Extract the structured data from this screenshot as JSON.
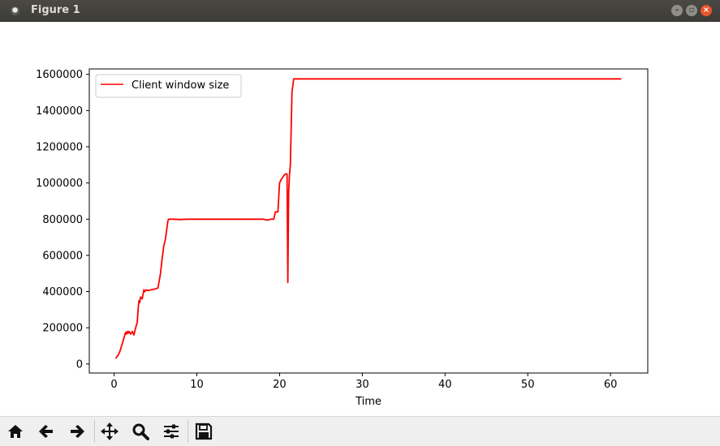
{
  "window": {
    "title": "Figure 1"
  },
  "toolbar": {
    "buttons": [
      {
        "name": "home-icon"
      },
      {
        "name": "back-arrow-icon"
      },
      {
        "name": "forward-arrow-icon"
      },
      {
        "name": "pan-icon"
      },
      {
        "name": "zoom-icon"
      },
      {
        "name": "configure-subplots-icon"
      },
      {
        "name": "save-icon"
      }
    ]
  },
  "chart_data": {
    "type": "line",
    "title": "",
    "xlabel": "Time",
    "ylabel": "",
    "xlim": [
      -3,
      64.5
    ],
    "ylim": [
      -50000,
      1630000
    ],
    "xticks": [
      "0",
      "10",
      "20",
      "30",
      "40",
      "50",
      "60"
    ],
    "yticks": [
      "0",
      "200000",
      "400000",
      "600000",
      "800000",
      "1000000",
      "1200000",
      "1400000",
      "1600000"
    ],
    "grid": false,
    "legend": {
      "location": "upper left",
      "entries": [
        "Client window size"
      ]
    },
    "series": [
      {
        "name": "Client window size",
        "color": "#ff0000",
        "x": [
          0.2,
          0.5,
          0.7,
          0.9,
          1.1,
          1.3,
          1.4,
          1.5,
          1.6,
          1.7,
          1.8,
          2.0,
          2.2,
          2.4,
          2.6,
          2.8,
          2.9,
          3.0,
          3.1,
          3.2,
          3.4,
          3.6,
          3.7,
          3.9,
          4.1,
          4.5,
          5.0,
          5.3,
          5.5,
          5.6,
          5.8,
          6.0,
          6.2,
          6.5,
          6.6,
          7.0,
          8.0,
          9.0,
          10.0,
          11.0,
          12.0,
          13.0,
          14.0,
          15.0,
          16.0,
          17.0,
          18.0,
          18.5,
          19.0,
          19.3,
          19.5,
          19.8,
          20.0,
          20.2,
          20.5,
          20.7,
          20.9,
          21.0,
          21.1,
          21.2,
          21.3,
          21.4,
          21.5,
          21.7,
          22.0,
          30.0,
          40.0,
          50.0,
          61.3
        ],
        "y": [
          30000,
          50000,
          70000,
          100000,
          130000,
          160000,
          175000,
          165000,
          180000,
          170000,
          180000,
          165000,
          180000,
          160000,
          200000,
          230000,
          300000,
          350000,
          340000,
          370000,
          360000,
          410000,
          400000,
          410000,
          405000,
          410000,
          415000,
          420000,
          470000,
          500000,
          580000,
          650000,
          690000,
          790000,
          800000,
          800000,
          798000,
          800000,
          800000,
          800000,
          800000,
          800000,
          800000,
          800000,
          800000,
          800000,
          800000,
          795000,
          800000,
          800000,
          840000,
          840000,
          1000000,
          1020000,
          1040000,
          1050000,
          1050000,
          450000,
          950000,
          1050000,
          1100000,
          1300000,
          1500000,
          1575000,
          1575000,
          1575000,
          1575000,
          1575000,
          1575000
        ]
      }
    ]
  }
}
